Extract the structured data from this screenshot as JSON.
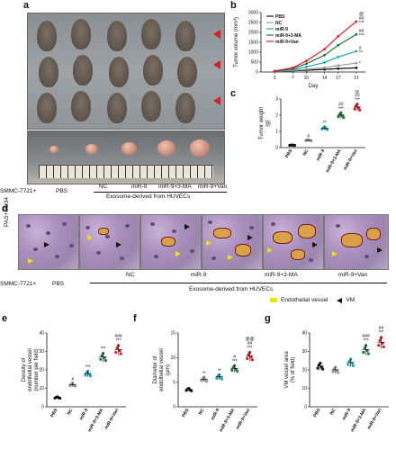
{
  "panel_labels": {
    "a": "a",
    "b": "b",
    "c": "c",
    "d": "d",
    "e": "e",
    "f": "f",
    "g": "g"
  },
  "panel_a": {
    "row_label": "SMMC-7721+",
    "groups": [
      "PBS",
      "NC",
      "miR-9",
      "miR-9+3-MA",
      "miR-9+Van"
    ],
    "exosome_label": "Exosome-derived from HUVECs",
    "marker_colors": {
      "arrow": "#d61f26"
    }
  },
  "panel_d": {
    "stain_label": "PAS+CD34",
    "row_label": "SMMC-7721+",
    "groups": [
      "PBS",
      "NC",
      "miR-9",
      "miR-9+3-MA",
      "miR-9+Van"
    ],
    "exosome_label": "Exosome-derived from HUVECs",
    "legend": {
      "endothelial": "Endothelial vessel",
      "vm": "VM"
    },
    "colors": {
      "endothelial": "#f2e20a",
      "vm": "#111111"
    }
  },
  "chart_data": [
    {
      "id": "b",
      "type": "line",
      "xlabel": "Day",
      "ylabel": "Tumor volume (mm³)",
      "x": [
        3,
        7,
        10,
        14,
        17,
        21
      ],
      "ylim": [
        0,
        3000
      ],
      "yticks": [
        "0",
        "500",
        "1000",
        "1500",
        "2000",
        "2500",
        "3000"
      ],
      "series": [
        {
          "name": "PBS",
          "color": "#111111",
          "values": [
            30,
            60,
            90,
            130,
            170,
            210
          ]
        },
        {
          "name": "NC",
          "color": "#9a9a9a",
          "values": [
            35,
            80,
            130,
            220,
            330,
            450
          ]
        },
        {
          "name": "miR-9",
          "color": "#1aa6b7",
          "values": [
            40,
            120,
            260,
            480,
            760,
            1050
          ]
        },
        {
          "name": "miR-9+3-MA",
          "color": "#1e7a3a",
          "values": [
            45,
            170,
            420,
            850,
            1350,
            1900
          ]
        },
        {
          "name": "miR-9+Van",
          "color": "#e01b24",
          "values": [
            50,
            210,
            560,
            1150,
            1800,
            2550
          ]
        }
      ],
      "annotations": [
        "@",
        "##",
        "***",
        "##",
        "***",
        "#",
        "**",
        "*"
      ]
    },
    {
      "id": "c",
      "type": "scatter",
      "ylabel": "Tumor weight (g)",
      "categories": [
        "PBS",
        "NC",
        "miR-9",
        "miR-9+3-MA",
        "miR-9+Van"
      ],
      "ylim": [
        0,
        3
      ],
      "yticks": [
        "0",
        "1",
        "2",
        "3"
      ],
      "values": [
        0.15,
        0.45,
        1.2,
        2.0,
        2.5
      ],
      "colors": [
        "#111111",
        "#9a9a9a",
        "#1aa6b7",
        "#1e7a3a",
        "#e01b24"
      ],
      "annotations": [
        "",
        "#",
        "**",
        "##\n***",
        "@\n##\n***"
      ]
    },
    {
      "id": "e",
      "type": "scatter",
      "ylabel": "Density of endothelial vessel (number per field)",
      "categories": [
        "PBS",
        "NC",
        "miR-9",
        "miR-9+3-MA",
        "miR-9+Van"
      ],
      "ylim": [
        0,
        40
      ],
      "yticks": [
        "0",
        "10",
        "20",
        "30",
        "40"
      ],
      "values": [
        5,
        12,
        18,
        27,
        31
      ],
      "colors": [
        "#111111",
        "#9a9a9a",
        "#1aa6b7",
        "#1e7a3a",
        "#e01b24"
      ],
      "annotations": [
        "",
        "#",
        "***",
        "***",
        "###\n***"
      ]
    },
    {
      "id": "f",
      "type": "scatter",
      "ylabel": "Diameter of endothelial vessel (μm)",
      "categories": [
        "PBS",
        "NC",
        "miR-9",
        "miR-9+3-MA",
        "miR-9+Van"
      ],
      "ylim": [
        0,
        15
      ],
      "yticks": [
        "0",
        "5",
        "10",
        "15"
      ],
      "values": [
        3.5,
        5.6,
        6.1,
        7.8,
        10.3
      ],
      "colors": [
        "#111111",
        "#9a9a9a",
        "#1aa6b7",
        "#1e7a3a",
        "#e01b24"
      ],
      "annotations": [
        "",
        "**",
        "**",
        "#\n***",
        "@@\n##\n***"
      ]
    },
    {
      "id": "g",
      "type": "scatter",
      "ylabel": "VM vessel area (% of field)",
      "categories": [
        "PBS",
        "NC",
        "miR-9",
        "miR-9+3-MA",
        "miR-9+Van"
      ],
      "ylim": [
        0,
        40
      ],
      "yticks": [
        "0",
        "10",
        "20",
        "30",
        "40"
      ],
      "values": [
        22,
        20,
        24,
        31,
        35
      ],
      "colors": [
        "#111111",
        "#9a9a9a",
        "#1aa6b7",
        "#1e7a3a",
        "#e01b24"
      ],
      "annotations": [
        "",
        "",
        "",
        "###\n***",
        "##\n***"
      ]
    }
  ]
}
